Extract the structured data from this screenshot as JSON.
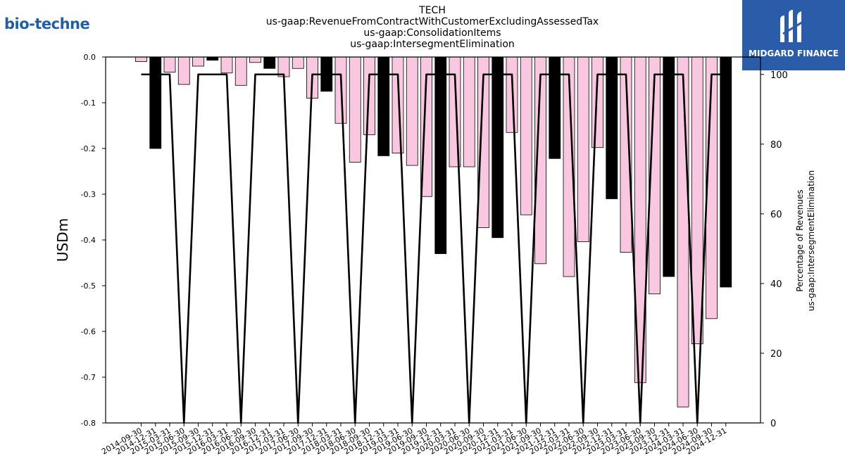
{
  "brand_left": "bio-techne",
  "brand_right": "MIDGARD FINANCE",
  "chart_data": {
    "type": "bar",
    "title_lines": [
      "TECH",
      "us-gaap:RevenueFromContractWithCustomerExcludingAssessedTax",
      "us-gaap:ConsolidationItems",
      "us-gaap:IntersegmentElimination"
    ],
    "ylabel": "USDm",
    "y2label_lines": [
      "Percentage of Revenues",
      "us-gaap:IntersegmentElimination"
    ],
    "ylim": [
      -0.8,
      0.0
    ],
    "y2lim": [
      0,
      105
    ],
    "yticks": [
      "0.0",
      "-0.1",
      "-0.2",
      "-0.3",
      "-0.4",
      "-0.5",
      "-0.6",
      "-0.7",
      "-0.8"
    ],
    "y2ticks": [
      "0",
      "20",
      "40",
      "60",
      "80",
      "100"
    ],
    "categories": [
      "2014-09-30",
      "2014-12-31",
      "2015-03-31",
      "2015-06-30",
      "2015-09-30",
      "2015-12-31",
      "2016-03-31",
      "2016-06-30",
      "2016-09-30",
      "2016-12-31",
      "2017-03-31",
      "2017-06-30",
      "2017-09-30",
      "2017-12-31",
      "2018-03-31",
      "2018-06-30",
      "2018-09-30",
      "2018-12-31",
      "2019-03-31",
      "2019-06-30",
      "2019-09-30",
      "2019-12-31",
      "2020-03-31",
      "2020-06-30",
      "2020-09-30",
      "2020-12-31",
      "2021-03-31",
      "2021-06-30",
      "2021-09-30",
      "2021-12-31",
      "2022-03-31",
      "2022-06-30",
      "2022-09-30",
      "2022-12-31",
      "2023-03-31",
      "2023-06-30",
      "2023-09-30",
      "2023-12-31",
      "2024-03-31",
      "2024-06-30",
      "2024-09-30",
      "2024-12-31"
    ],
    "values": [
      -0.01,
      -0.2,
      -0.033,
      -0.06,
      -0.02,
      -0.007,
      -0.035,
      -0.062,
      -0.012,
      -0.025,
      -0.043,
      -0.025,
      -0.09,
      -0.075,
      -0.145,
      -0.23,
      -0.17,
      -0.216,
      -0.21,
      -0.237,
      -0.305,
      -0.43,
      -0.24,
      -0.24,
      -0.373,
      -0.395,
      -0.165,
      -0.345,
      -0.452,
      -0.222,
      -0.48,
      -0.404,
      -0.198,
      -0.31,
      -0.427,
      -0.712,
      -0.518,
      -0.48,
      -0.765,
      -0.627,
      -0.572,
      -0.503
    ],
    "bar_colors": [
      "#f9c8e0",
      "#000000",
      "#f9c8e0",
      "#f9c8e0",
      "#f9c8e0",
      "#000000",
      "#f9c8e0",
      "#f9c8e0",
      "#f9c8e0",
      "#000000",
      "#f9c8e0",
      "#f9c8e0",
      "#f9c8e0",
      "#000000",
      "#f9c8e0",
      "#f9c8e0",
      "#f9c8e0",
      "#000000",
      "#f9c8e0",
      "#f9c8e0",
      "#f9c8e0",
      "#000000",
      "#f9c8e0",
      "#f9c8e0",
      "#f9c8e0",
      "#000000",
      "#f9c8e0",
      "#f9c8e0",
      "#f9c8e0",
      "#000000",
      "#f9c8e0",
      "#f9c8e0",
      "#f9c8e0",
      "#000000",
      "#f9c8e0",
      "#f9c8e0",
      "#f9c8e0",
      "#000000",
      "#f9c8e0",
      "#f9c8e0",
      "#f9c8e0",
      "#000000"
    ],
    "line_values": [
      100,
      100,
      100,
      0,
      100,
      100,
      100,
      0,
      100,
      100,
      100,
      0,
      100,
      100,
      100,
      0,
      100,
      100,
      100,
      0,
      100,
      100,
      100,
      0,
      100,
      100,
      100,
      0,
      100,
      100,
      100,
      0,
      100,
      100,
      100,
      0,
      100,
      100,
      100,
      0,
      100,
      100
    ],
    "line_color": "#000000",
    "grid": false
  }
}
